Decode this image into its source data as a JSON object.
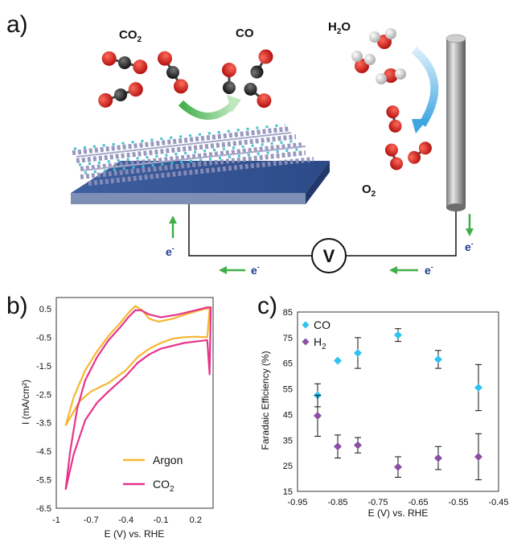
{
  "panels": {
    "a": "a)",
    "b": "b)",
    "c": "c)"
  },
  "schematic": {
    "co2_label": "CO",
    "co2_sub": "2",
    "co_label": "CO",
    "h2o_label_h": "H",
    "h2o_sub": "2",
    "h2o_label_o": "O",
    "o2_label": "O",
    "o2_sub": "2",
    "voltmeter": "V",
    "electron": "e",
    "electron_sup": "-"
  },
  "colors": {
    "argon": "#f5b731",
    "co2": "#e6338a",
    "co_marker": "#2ec4ef",
    "h2_marker": "#8b4fa6",
    "electrode": "#3a5a9a",
    "arrow_green": "#3fae49",
    "arrow_blue": "#5ab4e6"
  },
  "chart_data": [
    {
      "type": "line",
      "panel": "b",
      "xlabel": "E (V) vs. RHE",
      "ylabel": "I (mA/cm²)",
      "xlim": [
        -1,
        0.35
      ],
      "ylim": [
        -6.5,
        0.5
      ],
      "xticks": [
        "-1",
        "-0.7",
        "-0.4",
        "-0.1",
        "0.2"
      ],
      "xtick_values": [
        -1,
        -0.7,
        -0.4,
        -0.1,
        0.2
      ],
      "yticks": [
        "0.5",
        "-0.5",
        "-1.5",
        "-2.5",
        "-3.5",
        "-4.5",
        "-5.5",
        "-6.5"
      ],
      "ytick_values": [
        0.5,
        -0.5,
        -1.5,
        -2.5,
        -3.5,
        -4.5,
        -5.5,
        -6.5
      ],
      "grid": false,
      "legend_position": "bottom-right",
      "series": [
        {
          "name_main": "Argon",
          "name_sub": "",
          "color": "#f5b731",
          "points": [
            [
              -0.92,
              -3.6
            ],
            [
              -0.85,
              -2.6
            ],
            [
              -0.75,
              -1.65
            ],
            [
              -0.65,
              -1.0
            ],
            [
              -0.55,
              -0.45
            ],
            [
              -0.45,
              0.0
            ],
            [
              -0.38,
              0.35
            ],
            [
              -0.32,
              0.6
            ],
            [
              -0.26,
              0.45
            ],
            [
              -0.2,
              0.15
            ],
            [
              -0.12,
              0.05
            ],
            [
              0.0,
              0.15
            ],
            [
              0.15,
              0.35
            ],
            [
              0.28,
              0.5
            ],
            [
              0.32,
              0.5
            ],
            [
              0.3,
              -0.5
            ],
            [
              0.2,
              -0.48
            ],
            [
              0.1,
              -0.5
            ],
            [
              0.0,
              -0.55
            ],
            [
              -0.1,
              -0.7
            ],
            [
              -0.2,
              -0.9
            ],
            [
              -0.3,
              -1.2
            ],
            [
              -0.4,
              -1.65
            ],
            [
              -0.55,
              -2.1
            ],
            [
              -0.7,
              -2.4
            ],
            [
              -0.8,
              -2.75
            ],
            [
              -0.92,
              -3.6
            ]
          ]
        },
        {
          "name_main": "CO",
          "name_sub": "2",
          "color": "#e6338a",
          "points": [
            [
              -0.92,
              -5.85
            ],
            [
              -0.88,
              -4.5
            ],
            [
              -0.82,
              -3.0
            ],
            [
              -0.75,
              -2.0
            ],
            [
              -0.65,
              -1.2
            ],
            [
              -0.55,
              -0.6
            ],
            [
              -0.45,
              -0.15
            ],
            [
              -0.38,
              0.2
            ],
            [
              -0.32,
              0.45
            ],
            [
              -0.27,
              0.45
            ],
            [
              -0.2,
              0.3
            ],
            [
              -0.1,
              0.2
            ],
            [
              0.05,
              0.3
            ],
            [
              0.2,
              0.45
            ],
            [
              0.3,
              0.55
            ],
            [
              0.33,
              0.55
            ],
            [
              0.32,
              -1.8
            ],
            [
              0.3,
              -0.6
            ],
            [
              0.2,
              -0.65
            ],
            [
              0.1,
              -0.7
            ],
            [
              0.0,
              -0.8
            ],
            [
              -0.1,
              -0.9
            ],
            [
              -0.2,
              -1.1
            ],
            [
              -0.3,
              -1.4
            ],
            [
              -0.4,
              -1.85
            ],
            [
              -0.55,
              -2.4
            ],
            [
              -0.65,
              -2.8
            ],
            [
              -0.75,
              -3.4
            ],
            [
              -0.85,
              -4.6
            ],
            [
              -0.92,
              -5.85
            ]
          ]
        }
      ]
    },
    {
      "type": "scatter",
      "panel": "c",
      "xlabel": "E (V) vs. RHE",
      "ylabel": "Faradaic Efficiency (%)",
      "xlim": [
        -0.95,
        -0.45
      ],
      "ylim": [
        15,
        85
      ],
      "xticks": [
        "-0.95",
        "-0.85",
        "-0.75",
        "-0.65",
        "-0.55",
        "-0.45"
      ],
      "xtick_values": [
        -0.95,
        -0.85,
        -0.75,
        -0.65,
        -0.55,
        -0.45
      ],
      "yticks": [
        "85",
        "75",
        "65",
        "55",
        "45",
        "35",
        "25",
        "15"
      ],
      "ytick_values": [
        85,
        75,
        65,
        55,
        45,
        35,
        25,
        15
      ],
      "grid": false,
      "legend_position": "top-left",
      "series": [
        {
          "name_main": "CO",
          "name_sub": "",
          "color": "#2ec4ef",
          "points": [
            [
              -0.9,
              52.5,
              4.5
            ],
            [
              -0.85,
              66.0,
              0
            ],
            [
              -0.8,
              69.0,
              6.0
            ],
            [
              -0.7,
              76.0,
              2.5
            ],
            [
              -0.6,
              66.5,
              3.5
            ],
            [
              -0.5,
              55.5,
              9.0
            ]
          ]
        },
        {
          "name_main": "H",
          "name_sub": "2",
          "color": "#8b4fa6",
          "points": [
            [
              -0.9,
              44.5,
              8.0
            ],
            [
              -0.85,
              32.5,
              4.5
            ],
            [
              -0.8,
              33.0,
              3.0
            ],
            [
              -0.7,
              24.5,
              4.0
            ],
            [
              -0.6,
              28.0,
              4.5
            ],
            [
              -0.5,
              28.5,
              9.0
            ]
          ]
        }
      ]
    }
  ]
}
